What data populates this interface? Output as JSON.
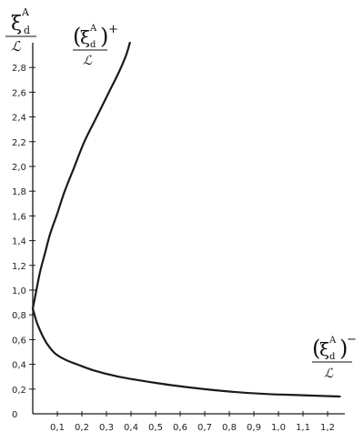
{
  "chart_data": {
    "type": "line",
    "title": "",
    "xlabel": "",
    "ylabel": {
      "symbol": "ξ",
      "superscript": "A",
      "subscript": "d",
      "denominator": "ℒ"
    },
    "xlim": [
      0,
      1.3
    ],
    "ylim": [
      0,
      3.0
    ],
    "x_tick_labels": [
      "0,1",
      "0,2",
      "0,3",
      "0,4",
      "0,5",
      "0,6",
      "0,7",
      "0,8",
      "0,9",
      "1,0",
      "1,1",
      "1,2"
    ],
    "y_tick_labels": [
      "0",
      "0,2",
      "0,4",
      "0,6",
      "0,8",
      "1,0",
      "1,2",
      "1,4",
      "1,6",
      "1,8",
      "2,0",
      "2,2",
      "2,4",
      "2,6",
      "2,8"
    ],
    "grid": false,
    "series": [
      {
        "name": "(ξdA)+ / ℒ",
        "label": {
          "symbol": "ξ",
          "superscript": "A",
          "subscript": "d",
          "sign": "+",
          "denominator": "ℒ"
        },
        "x": [
          0.0,
          0.015,
          0.03,
          0.05,
          0.07,
          0.1,
          0.13,
          0.17,
          0.21,
          0.26,
          0.31,
          0.35,
          0.38,
          0.395
        ],
        "y": [
          0.85,
          1.0,
          1.15,
          1.3,
          1.45,
          1.62,
          1.8,
          2.0,
          2.2,
          2.4,
          2.6,
          2.76,
          2.9,
          3.0
        ]
      },
      {
        "name": "(ξdA)− / ℒ",
        "label": {
          "symbol": "ξ",
          "superscript": "A",
          "subscript": "d",
          "sign": "−",
          "denominator": "ℒ"
        },
        "x": [
          0.0,
          0.01,
          0.02,
          0.04,
          0.06,
          0.09,
          0.13,
          0.18,
          0.25,
          0.35,
          0.5,
          0.65,
          0.8,
          0.95,
          1.1,
          1.25
        ],
        "y": [
          0.85,
          0.78,
          0.72,
          0.63,
          0.56,
          0.49,
          0.44,
          0.4,
          0.35,
          0.3,
          0.25,
          0.21,
          0.18,
          0.16,
          0.15,
          0.14
        ]
      }
    ]
  }
}
